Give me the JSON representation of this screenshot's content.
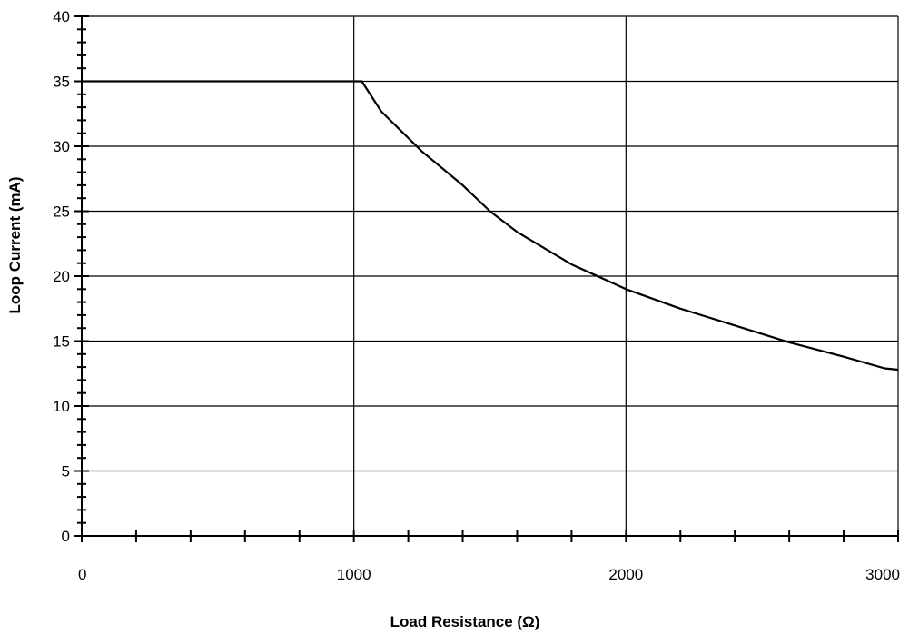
{
  "chart_data": {
    "type": "line",
    "title": "",
    "xlabel": "Load Resistance (Ω)",
    "ylabel": "Loop Current (mA)",
    "xlim": [
      0,
      3000
    ],
    "ylim": [
      0,
      40
    ],
    "x_major_ticks": [
      0,
      1000,
      2000,
      3000
    ],
    "x_tick_labels": [
      "0",
      "1000",
      "2000",
      "3000"
    ],
    "x_minor_step": 200,
    "y_major_ticks": [
      0,
      5,
      10,
      15,
      20,
      25,
      30,
      35,
      40
    ],
    "y_tick_labels": [
      "0",
      "5",
      "10",
      "15",
      "20",
      "25",
      "30",
      "35",
      "40"
    ],
    "y_minor_step": 1,
    "grid": true,
    "legend": "none",
    "series": [
      {
        "color": "#000000",
        "x": [
          0,
          1000,
          1029,
          1100,
          1250,
          1400,
          1500,
          1600,
          1800,
          2000,
          2200,
          2400,
          2600,
          2800,
          2950,
          3000
        ],
        "y": [
          35,
          35,
          35,
          32.7,
          29.6,
          27.0,
          25.0,
          23.4,
          20.9,
          19.0,
          17.5,
          16.2,
          14.9,
          13.8,
          12.9,
          12.8
        ]
      }
    ]
  }
}
